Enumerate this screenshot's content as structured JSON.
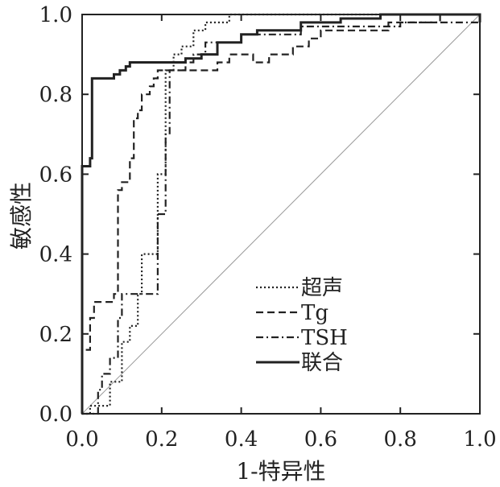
{
  "chart_data": {
    "type": "line",
    "title": "",
    "xlabel": "1-特异性",
    "ylabel": "敏感性",
    "xlim": [
      0,
      1
    ],
    "ylim": [
      0,
      1
    ],
    "xticks": [
      "0.0",
      "0.2",
      "0.4",
      "0.6",
      "0.8",
      "1.0"
    ],
    "yticks": [
      "0.0",
      "0.2",
      "0.4",
      "0.6",
      "0.8",
      "1.0"
    ],
    "grid": false,
    "legend_position": "lower-right",
    "reference_line": {
      "x": [
        0,
        1
      ],
      "y": [
        0,
        1
      ]
    },
    "series": [
      {
        "name": "超声",
        "dash": "dotted",
        "x": [
          0,
          0.02,
          0.02,
          0.07,
          0.07,
          0.1,
          0.1,
          0.12,
          0.12,
          0.14,
          0.14,
          0.15,
          0.15,
          0.19,
          0.19,
          0.21,
          0.21,
          0.23,
          0.23,
          0.25,
          0.25,
          0.28,
          0.28,
          0.31,
          0.31,
          0.37,
          0.37,
          1.0
        ],
        "y": [
          0,
          0,
          0.02,
          0.02,
          0.08,
          0.08,
          0.18,
          0.18,
          0.22,
          0.22,
          0.3,
          0.3,
          0.4,
          0.4,
          0.6,
          0.6,
          0.86,
          0.86,
          0.9,
          0.9,
          0.92,
          0.92,
          0.96,
          0.96,
          0.98,
          0.98,
          1.0,
          1.0
        ]
      },
      {
        "name": "Tg",
        "dash": "dashed",
        "x": [
          0,
          0,
          0.02,
          0.02,
          0.03,
          0.03,
          0.05,
          0.05,
          0.08,
          0.08,
          0.09,
          0.09,
          0.1,
          0.1,
          0.12,
          0.12,
          0.13,
          0.13,
          0.14,
          0.14,
          0.15,
          0.15,
          0.17,
          0.17,
          0.18,
          0.18,
          0.19,
          0.19,
          0.2,
          0.2,
          0.34,
          0.34,
          0.37,
          0.37,
          0.43,
          0.43,
          0.47,
          0.47,
          0.53,
          0.53,
          0.57,
          0.57,
          0.6,
          0.6,
          0.68,
          0.68,
          0.77,
          0.77,
          0.9,
          0.9,
          1.0
        ],
        "y": [
          0,
          0.16,
          0.16,
          0.24,
          0.24,
          0.28,
          0.28,
          0.28,
          0.28,
          0.3,
          0.3,
          0.56,
          0.56,
          0.58,
          0.58,
          0.64,
          0.64,
          0.74,
          0.74,
          0.76,
          0.76,
          0.8,
          0.8,
          0.82,
          0.82,
          0.84,
          0.84,
          0.86,
          0.86,
          0.86,
          0.86,
          0.88,
          0.88,
          0.9,
          0.9,
          0.88,
          0.88,
          0.9,
          0.9,
          0.92,
          0.92,
          0.94,
          0.94,
          0.96,
          0.96,
          0.96,
          0.96,
          0.98,
          0.98,
          1.0,
          1.0
        ]
      },
      {
        "name": "TSH",
        "dash": "dashdot",
        "x": [
          0,
          0.04,
          0.04,
          0.05,
          0.05,
          0.07,
          0.07,
          0.09,
          0.09,
          0.1,
          0.1,
          0.13,
          0.13,
          0.19,
          0.19,
          0.21,
          0.21,
          0.22,
          0.22,
          0.26,
          0.26,
          0.28,
          0.28,
          0.31,
          0.31,
          0.4,
          0.4,
          0.55,
          0.55,
          0.8,
          0.8,
          1.0
        ],
        "y": [
          0,
          0,
          0.06,
          0.06,
          0.1,
          0.1,
          0.14,
          0.14,
          0.24,
          0.24,
          0.3,
          0.3,
          0.3,
          0.3,
          0.5,
          0.5,
          0.7,
          0.7,
          0.86,
          0.86,
          0.88,
          0.88,
          0.9,
          0.9,
          0.93,
          0.93,
          0.95,
          0.95,
          0.97,
          0.97,
          0.98,
          0.98
        ]
      },
      {
        "name": "联合",
        "dash": "solid",
        "x": [
          0,
          0,
          0.02,
          0.02,
          0.025,
          0.025,
          0.065,
          0.065,
          0.08,
          0.08,
          0.095,
          0.095,
          0.11,
          0.11,
          0.12,
          0.12,
          0.22,
          0.22,
          0.26,
          0.26,
          0.3,
          0.3,
          0.34,
          0.34,
          0.4,
          0.4,
          0.44,
          0.44,
          0.55,
          0.55,
          0.65,
          0.65,
          0.75,
          0.75,
          1.0,
          1.0
        ],
        "y": [
          0,
          0.62,
          0.62,
          0.64,
          0.64,
          0.84,
          0.84,
          0.84,
          0.84,
          0.85,
          0.85,
          0.86,
          0.86,
          0.87,
          0.87,
          0.88,
          0.88,
          0.88,
          0.88,
          0.89,
          0.89,
          0.9,
          0.9,
          0.93,
          0.93,
          0.95,
          0.95,
          0.96,
          0.96,
          0.98,
          0.98,
          0.99,
          0.99,
          1.0,
          1.0,
          0.98
        ]
      }
    ]
  }
}
